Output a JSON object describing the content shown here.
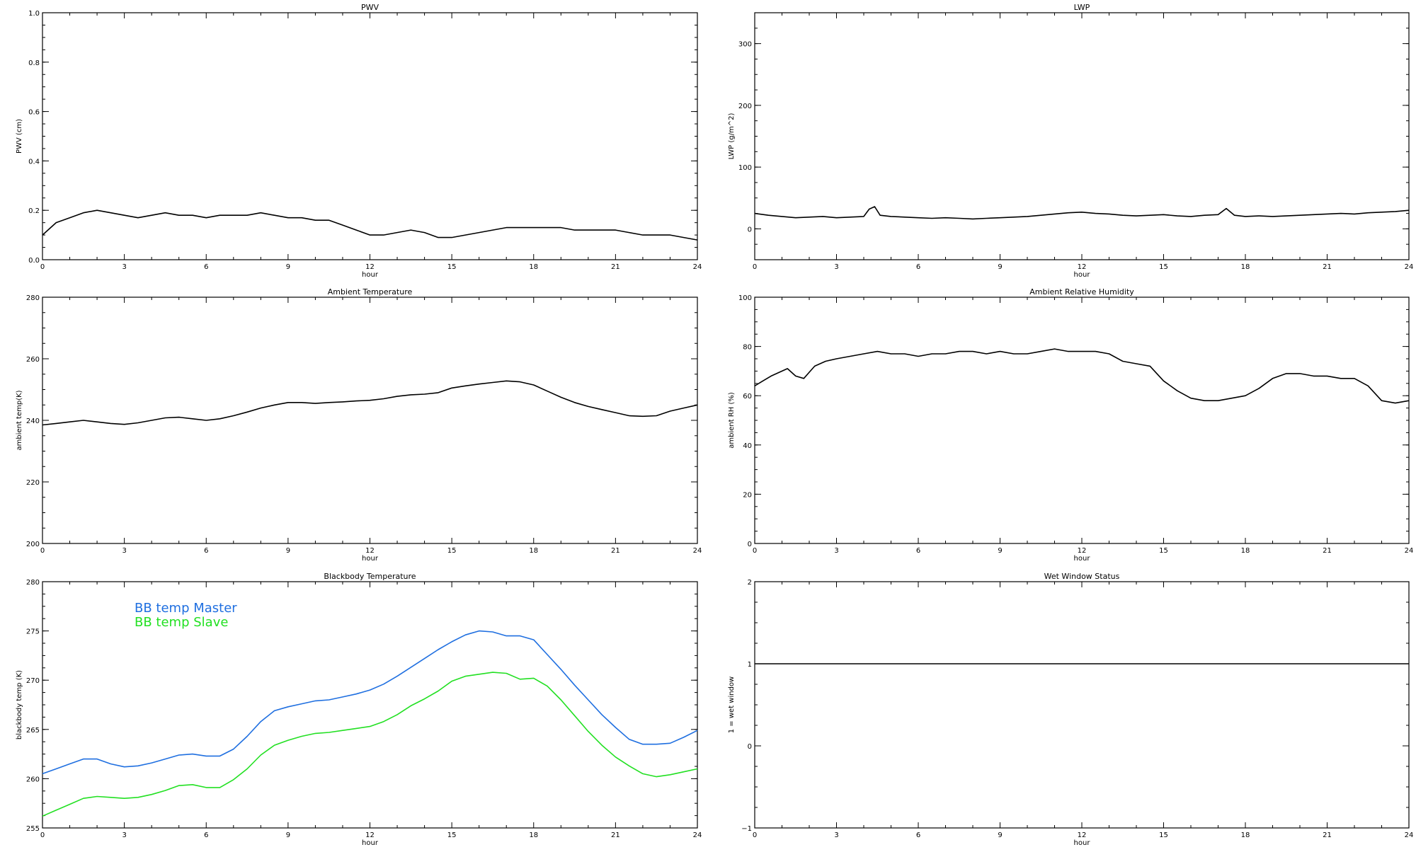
{
  "chart_data": [
    {
      "type": "line",
      "title": "PWV",
      "xlabel": "hour",
      "ylabel": "PWV (cm)",
      "xlim": [
        0,
        24
      ],
      "ylim": [
        0.0,
        1.0
      ],
      "x_ticks": [
        "0",
        "3",
        "6",
        "9",
        "12",
        "15",
        "18",
        "21",
        "24"
      ],
      "y_ticks": [
        "0.0",
        "0.2",
        "0.4",
        "0.6",
        "0.8",
        "1.0"
      ],
      "y_tick_values": [
        0.0,
        0.2,
        0.4,
        0.6,
        0.8,
        1.0
      ],
      "series": [
        {
          "name": "",
          "color": "#000000",
          "x": [
            0,
            0.5,
            1,
            1.5,
            2,
            2.5,
            3,
            3.5,
            4,
            4.5,
            5,
            5.5,
            6,
            6.5,
            7,
            7.5,
            8,
            8.5,
            9,
            9.5,
            10,
            10.5,
            11,
            11.5,
            12,
            12.5,
            13,
            13.5,
            14,
            14.5,
            15,
            15.5,
            16,
            16.5,
            17,
            17.5,
            18,
            18.5,
            19,
            19.5,
            20,
            20.5,
            21,
            21.5,
            22,
            22.5,
            23,
            23.5,
            24
          ],
          "y": [
            0.1,
            0.15,
            0.17,
            0.19,
            0.2,
            0.19,
            0.18,
            0.17,
            0.18,
            0.19,
            0.18,
            0.18,
            0.17,
            0.18,
            0.18,
            0.18,
            0.19,
            0.18,
            0.17,
            0.17,
            0.16,
            0.16,
            0.14,
            0.12,
            0.1,
            0.1,
            0.11,
            0.12,
            0.11,
            0.09,
            0.09,
            0.1,
            0.11,
            0.12,
            0.13,
            0.13,
            0.13,
            0.13,
            0.13,
            0.12,
            0.12,
            0.12,
            0.12,
            0.11,
            0.1,
            0.1,
            0.1,
            0.09,
            0.08
          ]
        }
      ]
    },
    {
      "type": "line",
      "title": "LWP",
      "xlabel": "hour",
      "ylabel": "LWP (g/m^2)",
      "xlim": [
        0,
        24
      ],
      "ylim": [
        -50,
        350
      ],
      "x_ticks": [
        "0",
        "3",
        "6",
        "9",
        "12",
        "15",
        "18",
        "21",
        "24"
      ],
      "y_ticks": [
        "0",
        "100",
        "200",
        "300"
      ],
      "y_tick_values": [
        0,
        100,
        200,
        300
      ],
      "series": [
        {
          "name": "",
          "color": "#000000",
          "x": [
            0,
            0.5,
            1,
            1.5,
            2,
            2.5,
            3,
            3.5,
            4,
            4.2,
            4.4,
            4.6,
            5,
            5.5,
            6,
            6.5,
            7,
            7.5,
            8,
            8.5,
            9,
            9.5,
            10,
            10.5,
            11,
            11.5,
            12,
            12.5,
            13,
            13.5,
            14,
            14.5,
            15,
            15.5,
            16,
            16.5,
            17,
            17.3,
            17.6,
            18,
            18.5,
            19,
            19.5,
            20,
            20.5,
            21,
            21.5,
            22,
            22.5,
            23,
            23.5,
            24
          ],
          "y": [
            25,
            22,
            20,
            18,
            19,
            20,
            18,
            19,
            20,
            32,
            36,
            22,
            20,
            19,
            18,
            17,
            18,
            17,
            16,
            17,
            18,
            19,
            20,
            22,
            24,
            26,
            27,
            25,
            24,
            22,
            21,
            22,
            23,
            21,
            20,
            22,
            23,
            33,
            22,
            20,
            21,
            20,
            21,
            22,
            23,
            24,
            25,
            24,
            26,
            27,
            28,
            30
          ]
        }
      ]
    },
    {
      "type": "line",
      "title": "Ambient Temperature",
      "xlabel": "hour",
      "ylabel": "ambient temp(K)",
      "xlim": [
        0,
        24
      ],
      "ylim": [
        200,
        280
      ],
      "x_ticks": [
        "0",
        "3",
        "6",
        "9",
        "12",
        "15",
        "18",
        "21",
        "24"
      ],
      "y_ticks": [
        "200",
        "220",
        "240",
        "260",
        "280"
      ],
      "y_tick_values": [
        200,
        220,
        240,
        260,
        280
      ],
      "series": [
        {
          "name": "",
          "color": "#000000",
          "x": [
            0,
            0.5,
            1,
            1.5,
            2,
            2.5,
            3,
            3.5,
            4,
            4.5,
            5,
            5.5,
            6,
            6.5,
            7,
            7.5,
            8,
            8.5,
            9,
            9.5,
            10,
            10.5,
            11,
            11.5,
            12,
            12.5,
            13,
            13.5,
            14,
            14.5,
            15,
            15.5,
            16,
            16.5,
            17,
            17.5,
            18,
            18.5,
            19,
            19.5,
            20,
            20.5,
            21,
            21.5,
            22,
            22.5,
            23,
            23.5,
            24
          ],
          "y": [
            238.5,
            239.0,
            239.5,
            240.0,
            239.5,
            239.0,
            238.7,
            239.2,
            240.0,
            240.8,
            241.0,
            240.5,
            240.0,
            240.5,
            241.5,
            242.7,
            244.0,
            245.0,
            245.8,
            245.8,
            245.5,
            245.8,
            246.0,
            246.3,
            246.5,
            247.0,
            247.8,
            248.3,
            248.5,
            249.0,
            250.5,
            251.2,
            251.8,
            252.3,
            252.8,
            252.5,
            251.5,
            249.5,
            247.5,
            245.8,
            244.5,
            243.5,
            242.5,
            241.5,
            241.3,
            241.5,
            243.0,
            244.0,
            245.0
          ]
        }
      ]
    },
    {
      "type": "line",
      "title": "Ambient Relative Humidity",
      "xlabel": "hour",
      "ylabel": "ambient RH (%)",
      "xlim": [
        0,
        24
      ],
      "ylim": [
        0,
        100
      ],
      "x_ticks": [
        "0",
        "3",
        "6",
        "9",
        "12",
        "15",
        "18",
        "21",
        "24"
      ],
      "y_ticks": [
        "0",
        "20",
        "40",
        "60",
        "80",
        "100"
      ],
      "y_tick_values": [
        0,
        20,
        40,
        60,
        80,
        100
      ],
      "series": [
        {
          "name": "",
          "color": "#000000",
          "x": [
            0,
            0.3,
            0.6,
            1,
            1.2,
            1.5,
            1.8,
            2.2,
            2.6,
            3,
            3.5,
            4,
            4.5,
            5,
            5.5,
            6,
            6.5,
            7,
            7.5,
            8,
            8.5,
            9,
            9.5,
            10,
            10.5,
            11,
            11.5,
            12,
            12.5,
            13,
            13.5,
            14,
            14.5,
            15,
            15.5,
            16,
            16.5,
            17,
            17.5,
            18,
            18.5,
            19,
            19.5,
            20,
            20.5,
            21,
            21.5,
            22,
            22.5,
            23,
            23.5,
            24
          ],
          "y": [
            64,
            66,
            68,
            70,
            71,
            68,
            67,
            72,
            74,
            75,
            76,
            77,
            78,
            77,
            77,
            76,
            77,
            77,
            78,
            78,
            77,
            78,
            77,
            77,
            78,
            79,
            78,
            78,
            78,
            77,
            74,
            73,
            72,
            66,
            62,
            59,
            58,
            58,
            59,
            60,
            63,
            67,
            69,
            69,
            68,
            68,
            67,
            67,
            64,
            58,
            57,
            58
          ]
        }
      ]
    },
    {
      "type": "line",
      "title": "Blackbody Temperature",
      "xlabel": "hour",
      "ylabel": "blackbody temp (K)",
      "xlim": [
        0,
        24
      ],
      "ylim": [
        255,
        280
      ],
      "x_ticks": [
        "0",
        "3",
        "6",
        "9",
        "12",
        "15",
        "18",
        "21",
        "24"
      ],
      "y_ticks": [
        "255",
        "260",
        "265",
        "270",
        "275",
        "280"
      ],
      "y_tick_values": [
        255,
        260,
        265,
        270,
        275,
        280
      ],
      "legend_position": "top-left",
      "series": [
        {
          "name": "BB temp Master",
          "color": "#1f6fe0",
          "x": [
            0,
            0.5,
            1,
            1.5,
            2,
            2.5,
            3,
            3.5,
            4,
            4.5,
            5,
            5.5,
            6,
            6.5,
            7,
            7.5,
            8,
            8.5,
            9,
            9.5,
            10,
            10.5,
            11,
            11.5,
            12,
            12.5,
            13,
            13.5,
            14,
            14.5,
            15,
            15.5,
            16,
            16.5,
            17,
            17.5,
            18,
            18.5,
            19,
            19.5,
            20,
            20.5,
            21,
            21.5,
            22,
            22.5,
            23,
            23.5,
            24
          ],
          "y": [
            260.5,
            261.0,
            261.5,
            262.0,
            262.0,
            261.5,
            261.2,
            261.3,
            261.6,
            262.0,
            262.4,
            262.5,
            262.3,
            262.3,
            263.0,
            264.3,
            265.8,
            266.9,
            267.3,
            267.6,
            267.9,
            268.0,
            268.3,
            268.6,
            269.0,
            269.6,
            270.4,
            271.3,
            272.2,
            273.1,
            273.9,
            274.6,
            275.0,
            274.9,
            274.5,
            274.5,
            274.1,
            272.6,
            271.1,
            269.5,
            268.0,
            266.5,
            265.2,
            264.0,
            263.5,
            263.5,
            263.6,
            264.2,
            264.9
          ]
        },
        {
          "name": "BB temp Slave",
          "color": "#22e022",
          "x": [
            0,
            0.5,
            1,
            1.5,
            2,
            2.5,
            3,
            3.5,
            4,
            4.5,
            5,
            5.5,
            6,
            6.5,
            7,
            7.5,
            8,
            8.5,
            9,
            9.5,
            10,
            10.5,
            11,
            11.5,
            12,
            12.5,
            13,
            13.5,
            14,
            14.5,
            15,
            15.5,
            16,
            16.5,
            17,
            17.5,
            18,
            18.5,
            19,
            19.5,
            20,
            20.5,
            21,
            21.5,
            22,
            22.5,
            23,
            23.5,
            24
          ],
          "y": [
            256.2,
            256.8,
            257.4,
            258.0,
            258.2,
            258.1,
            258.0,
            258.1,
            258.4,
            258.8,
            259.3,
            259.4,
            259.1,
            259.1,
            259.9,
            261.0,
            262.4,
            263.4,
            263.9,
            264.3,
            264.6,
            264.7,
            264.9,
            265.1,
            265.3,
            265.8,
            266.5,
            267.4,
            268.1,
            268.9,
            269.9,
            270.4,
            270.6,
            270.8,
            270.7,
            270.1,
            270.2,
            269.4,
            268.0,
            266.4,
            264.8,
            263.4,
            262.2,
            261.3,
            260.5,
            260.2,
            260.4,
            260.7,
            261.0
          ]
        }
      ]
    },
    {
      "type": "line",
      "title": "Wet Window Status",
      "xlabel": "hour",
      "ylabel": "1 = wet window",
      "xlim": [
        0,
        24
      ],
      "ylim": [
        -1,
        2
      ],
      "x_ticks": [
        "0",
        "3",
        "6",
        "9",
        "12",
        "15",
        "18",
        "21",
        "24"
      ],
      "y_ticks": [
        "−1",
        "0",
        "1",
        "2"
      ],
      "y_tick_values": [
        -1,
        0,
        1,
        2
      ],
      "series": [
        {
          "name": "",
          "color": "#000000",
          "x": [
            0,
            24
          ],
          "y": [
            1,
            1
          ]
        }
      ]
    }
  ]
}
